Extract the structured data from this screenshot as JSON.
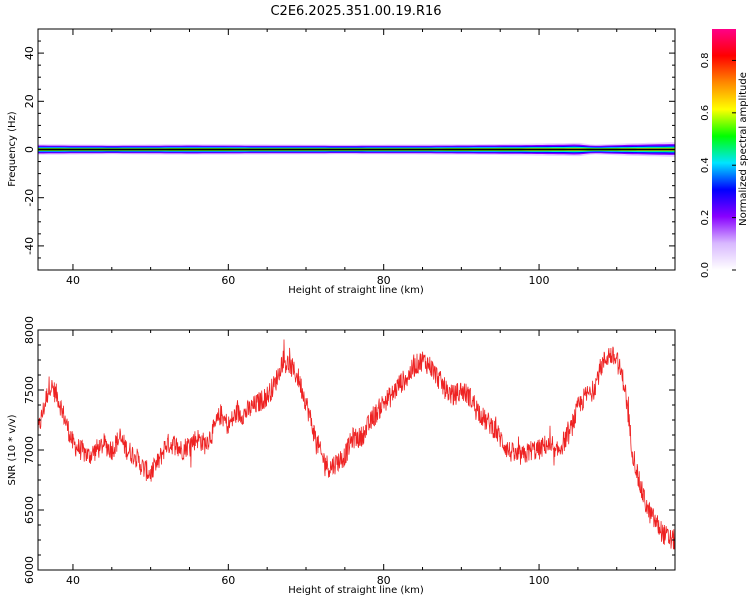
{
  "figure": {
    "title": "C2E6.2025.351.00.19.R16"
  },
  "chart_data": [
    {
      "type": "heatmap",
      "xlabel": "Height of straight line (km)",
      "ylabel": "Frequency (Hz)",
      "xlim": [
        35.5,
        117.5
      ],
      "ylim": [
        -50,
        50
      ],
      "x_ticks": [
        40,
        60,
        80,
        100
      ],
      "y_ticks": [
        40,
        20,
        0,
        -20,
        -40
      ],
      "band_center_hz": 0,
      "band_halfwidth_hz": [
        [
          36,
          2.2
        ],
        [
          45,
          2.0
        ],
        [
          55,
          2.2
        ],
        [
          65,
          2.1
        ],
        [
          75,
          2.0
        ],
        [
          85,
          2.1
        ],
        [
          95,
          2.3
        ],
        [
          103,
          2.6
        ],
        [
          105,
          2.8
        ],
        [
          107,
          2.0
        ],
        [
          112,
          2.6
        ],
        [
          117,
          3.0
        ]
      ],
      "colorbar": {
        "label": "Normalized spectral amplitude",
        "range": [
          0,
          0.92
        ],
        "ticks": [
          0.0,
          0.2,
          0.4,
          0.6,
          0.8
        ],
        "colormap": [
          "#ffffff",
          "#d8b8ff",
          "#8800ff",
          "#0000ff",
          "#00e5ff",
          "#00ff00",
          "#ffff00",
          "#ff8800",
          "#ff0000",
          "#ff0088"
        ]
      },
      "grid": false
    },
    {
      "type": "line",
      "xlabel": "Height of straight line (km)",
      "ylabel": "SNR (10 * v/v)",
      "xlim": [
        35.5,
        117.5
      ],
      "ylim": [
        6000,
        8000
      ],
      "x_ticks": [
        40,
        60,
        80,
        100
      ],
      "y_ticks": [
        8000,
        7500,
        7000,
        6500,
        6000
      ],
      "series": [
        {
          "color": "#ee2222",
          "x": [
            35.5,
            37,
            38,
            39,
            40,
            41,
            42,
            43,
            44,
            45,
            46,
            47,
            48,
            49,
            50,
            51,
            52,
            53,
            54,
            55,
            56,
            57,
            58,
            59,
            60,
            61,
            62,
            63,
            64,
            65,
            66,
            67,
            68,
            69,
            70,
            71,
            72,
            73,
            74,
            75,
            76,
            77,
            78,
            79,
            80,
            81,
            82,
            83,
            84,
            85,
            86,
            87,
            88,
            89,
            90,
            91,
            92,
            93,
            94,
            95,
            96,
            97,
            98,
            99,
            100,
            101,
            102,
            103,
            104,
            105,
            106,
            107,
            108,
            109,
            110,
            111,
            112,
            113,
            114,
            115,
            116,
            117,
            117.5
          ],
          "y": [
            7150,
            7550,
            7450,
            7250,
            7050,
            7000,
            6950,
            7000,
            7050,
            7000,
            7100,
            7000,
            6950,
            6850,
            6800,
            6900,
            7050,
            7050,
            7000,
            7050,
            7100,
            7050,
            7150,
            7300,
            7200,
            7300,
            7300,
            7350,
            7400,
            7450,
            7550,
            7750,
            7700,
            7600,
            7400,
            7150,
            6950,
            6850,
            6900,
            6950,
            7100,
            7100,
            7200,
            7300,
            7400,
            7450,
            7550,
            7600,
            7700,
            7750,
            7700,
            7600,
            7500,
            7450,
            7500,
            7450,
            7350,
            7250,
            7200,
            7100,
            7000,
            6950,
            6950,
            7000,
            7000,
            7050,
            6950,
            7050,
            7150,
            7350,
            7450,
            7500,
            7700,
            7800,
            7750,
            7550,
            7000,
            6700,
            6500,
            6400,
            6300,
            6250,
            6250
          ]
        }
      ],
      "grid": false
    }
  ]
}
